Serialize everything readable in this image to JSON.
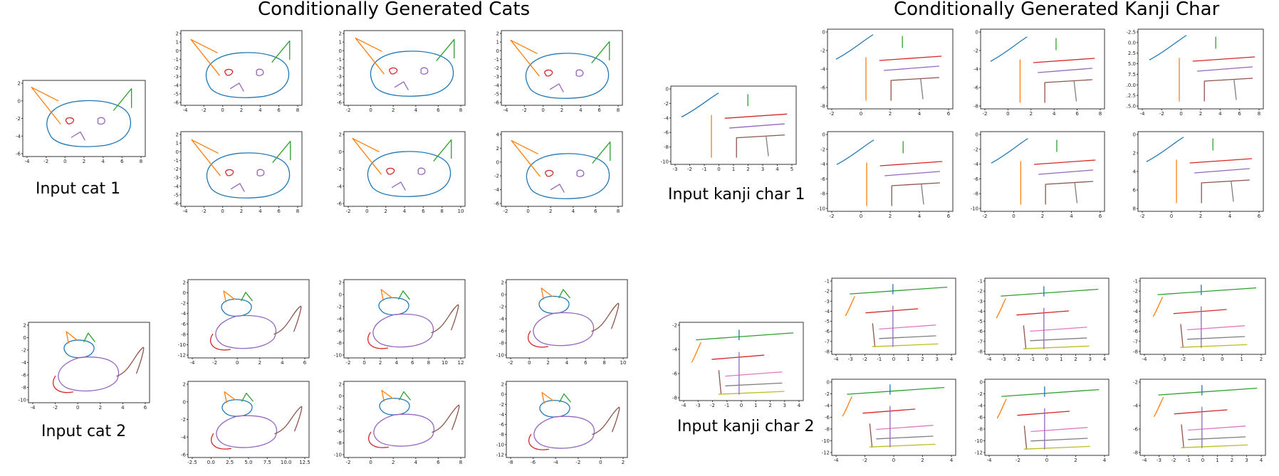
{
  "titles": {
    "cats": "Conditionally Generated Cats",
    "kanji": "Conditionally Generated Kanji Char"
  },
  "captions": {
    "input_cat_1": "Input cat 1",
    "input_cat_2": "Input cat 2",
    "input_kanji_1": "Input kanji char 1",
    "input_kanji_2": "Input kanji char 2"
  },
  "colors": {
    "blue": "#1f77b4",
    "orange": "#ff7f0e",
    "green": "#2ca02c",
    "red": "#d62728",
    "purple": "#9467bd",
    "brown": "#8c564b",
    "pink": "#e377c2",
    "gray": "#7f7f7f",
    "olive": "#bcbd22",
    "cyan": "#17becf"
  },
  "plots": [
    {
      "id": "cat1-input",
      "xt": [
        "-4",
        "-2",
        "0",
        "2",
        "4",
        "6",
        "8"
      ],
      "yt": [
        "2",
        "0",
        "-2",
        "-4",
        "-6"
      ],
      "sketch": "cat"
    },
    {
      "id": "cat1-gen-1",
      "xt": [
        "-4",
        "-2",
        "0",
        "2",
        "4",
        "6",
        "8"
      ],
      "yt": [
        "2",
        "1",
        "0",
        "-1",
        "-2",
        "-3",
        "-4",
        "-5",
        "-6"
      ],
      "sketch": "cat"
    },
    {
      "id": "cat1-gen-2",
      "xt": [
        "-2",
        "0",
        "2",
        "4",
        "6",
        "8"
      ],
      "yt": [
        "2",
        "1",
        "0",
        "-1",
        "-2",
        "-3",
        "-4",
        "-5",
        "-6"
      ],
      "sketch": "cat"
    },
    {
      "id": "cat1-gen-3",
      "xt": [
        "-4",
        "-2",
        "0",
        "2",
        "4",
        "6",
        "8"
      ],
      "yt": [
        "2",
        "1",
        "0",
        "-1",
        "-2",
        "-3",
        "-4",
        "-5",
        "-6"
      ],
      "sketch": "cat"
    },
    {
      "id": "cat1-gen-4",
      "xt": [
        "-4",
        "-2",
        "0",
        "2",
        "4",
        "6",
        "8"
      ],
      "yt": [
        "2",
        "1",
        "0",
        "-1",
        "-2",
        "-3",
        "-4",
        "-5",
        "-6"
      ],
      "sketch": "cat"
    },
    {
      "id": "cat1-gen-5",
      "xt": [
        "-2",
        "0",
        "2",
        "4",
        "6",
        "8",
        "10"
      ],
      "yt": [
        "2",
        "0",
        "-2",
        "-4",
        "-6"
      ],
      "sketch": "cat"
    },
    {
      "id": "cat1-gen-6",
      "xt": [
        "-2",
        "0",
        "2",
        "4",
        "6",
        "8"
      ],
      "yt": [
        "4",
        "2",
        "0",
        "-2",
        "-4",
        "-6"
      ],
      "sketch": "cat"
    },
    {
      "id": "cat2-input",
      "xt": [
        "-4",
        "-2",
        "0",
        "2",
        "4",
        "6"
      ],
      "yt": [
        "2",
        "0",
        "-2",
        "-4",
        "-6",
        "-8",
        "-10"
      ],
      "sketch": "cat2"
    },
    {
      "id": "cat2-gen-1",
      "xt": [
        "-4",
        "-2",
        "0",
        "2",
        "4",
        "6"
      ],
      "yt": [
        "2",
        "0",
        "-2",
        "-4",
        "-6",
        "-8",
        "-10",
        "-12"
      ],
      "sketch": "cat2"
    },
    {
      "id": "cat2-gen-2",
      "xt": [
        "-2",
        "0",
        "2",
        "4",
        "6",
        "8",
        "10",
        "12"
      ],
      "yt": [
        "2",
        "0",
        "-2",
        "-4",
        "-6",
        "-8",
        "-10"
      ],
      "sketch": "cat2"
    },
    {
      "id": "cat2-gen-3",
      "xt": [
        "-2",
        "0",
        "2",
        "4",
        "6",
        "8",
        "10"
      ],
      "yt": [
        "2",
        "0",
        "-2",
        "-4",
        "-6",
        "-8",
        "-10"
      ],
      "sketch": "cat2"
    },
    {
      "id": "cat2-gen-4",
      "xt": [
        "-2.5",
        "0.0",
        "2.5",
        "5.0",
        "7.5",
        "10.0",
        "12.5"
      ],
      "yt": [
        "2",
        "0",
        "-2",
        "-4",
        "-6"
      ],
      "sketch": "cat2"
    },
    {
      "id": "cat2-gen-5",
      "xt": [
        "-2",
        "0",
        "2",
        "4",
        "6",
        "8"
      ],
      "yt": [
        "2",
        "0",
        "-2",
        "-4",
        "-6",
        "-8",
        "-10"
      ],
      "sketch": "cat2"
    },
    {
      "id": "cat2-gen-6",
      "xt": [
        "-8",
        "-6",
        "-4",
        "-2",
        "0",
        "2"
      ],
      "yt": [
        "2",
        "0",
        "-2",
        "-4",
        "-6",
        "-8",
        "-10",
        "-12"
      ],
      "sketch": "cat2"
    },
    {
      "id": "kanji1-input",
      "xt": [
        "-3",
        "-2",
        "-1",
        "0",
        "1",
        "2",
        "3",
        "4",
        "5"
      ],
      "yt": [
        "0",
        "-2",
        "-4",
        "-6",
        "-8",
        "-10"
      ],
      "sketch": "kanji"
    },
    {
      "id": "kanji1-gen-1",
      "xt": [
        "-2",
        "0",
        "2",
        "4",
        "6"
      ],
      "yt": [
        "0",
        "-2",
        "-4",
        "-6",
        "-8"
      ],
      "sketch": "kanji"
    },
    {
      "id": "kanji1-gen-2",
      "xt": [
        "-2",
        "0",
        "2",
        "4",
        "6",
        "8"
      ],
      "yt": [
        "0",
        "-2",
        "-4",
        "-6",
        "-8"
      ],
      "sketch": "kanji"
    },
    {
      "id": "kanji1-gen-3",
      "xt": [
        "-4",
        "-2",
        "0",
        "2",
        "4",
        "6",
        "8"
      ],
      "yt": [
        "-2.5",
        "0.0",
        "2.5",
        "5.0",
        "7.5",
        "10.0",
        "12.5",
        "15.0"
      ],
      "sketch": "kanji"
    },
    {
      "id": "kanji1-gen-4",
      "xt": [
        "-2",
        "0",
        "2",
        "4",
        "6"
      ],
      "yt": [
        "0",
        "-2",
        "-4",
        "-6",
        "-8",
        "-10"
      ],
      "sketch": "kanji"
    },
    {
      "id": "kanji1-gen-5",
      "xt": [
        "-2",
        "0",
        "2",
        "4",
        "6"
      ],
      "yt": [
        "0",
        "-2",
        "-4",
        "-6",
        "-8",
        "-10"
      ],
      "sketch": "kanji"
    },
    {
      "id": "kanji1-gen-6",
      "xt": [
        "-2",
        "0",
        "2",
        "4",
        "6"
      ],
      "yt": [
        "0",
        "2",
        "4",
        "6",
        "8"
      ],
      "sketch": "kanji"
    },
    {
      "id": "kanji2-input",
      "xt": [
        "-4",
        "-3",
        "-2",
        "-1",
        "0",
        "1",
        "2",
        "3",
        "4"
      ],
      "yt": [
        "-2",
        "-4",
        "-6",
        "-8"
      ],
      "sketch": "kanji2"
    },
    {
      "id": "kanji2-gen-1",
      "xt": [
        "-4",
        "-3",
        "-2",
        "-1",
        "0",
        "1",
        "2",
        "3",
        "4"
      ],
      "yt": [
        "-1",
        "-2",
        "-3",
        "-4",
        "-5",
        "-6",
        "-7",
        "-8"
      ],
      "sketch": "kanji2"
    },
    {
      "id": "kanji2-gen-2",
      "xt": [
        "-4",
        "-3",
        "-2",
        "-1",
        "0",
        "1",
        "2",
        "3",
        "4"
      ],
      "yt": [
        "-1",
        "-2",
        "-3",
        "-4",
        "-5",
        "-6",
        "-7",
        "-8"
      ],
      "sketch": "kanji2"
    },
    {
      "id": "kanji2-gen-3",
      "xt": [
        "-4",
        "-3",
        "-2",
        "-1",
        "0",
        "1",
        "2"
      ],
      "yt": [
        "-1",
        "-2",
        "-3",
        "-4",
        "-5",
        "-6",
        "-7",
        "-8"
      ],
      "sketch": "kanji2"
    },
    {
      "id": "kanji2-gen-4",
      "xt": [
        "-4",
        "-2",
        "0",
        "2",
        "4"
      ],
      "yt": [
        "0",
        "-2",
        "-4",
        "-6",
        "-8",
        "-10",
        "-12"
      ],
      "sketch": "kanji2"
    },
    {
      "id": "kanji2-gen-5",
      "xt": [
        "-4",
        "-2",
        "0",
        "2",
        "4"
      ],
      "yt": [
        "0",
        "-2",
        "-4",
        "-6",
        "-8",
        "-10",
        "-12"
      ],
      "sketch": "kanji2"
    },
    {
      "id": "kanji2-gen-6",
      "xt": [
        "-4",
        "-3",
        "-2",
        "-1",
        "0",
        "1",
        "2",
        "3",
        "4"
      ],
      "yt": [
        "-2",
        "-4",
        "-6",
        "-8"
      ],
      "sketch": "kanji2"
    }
  ]
}
